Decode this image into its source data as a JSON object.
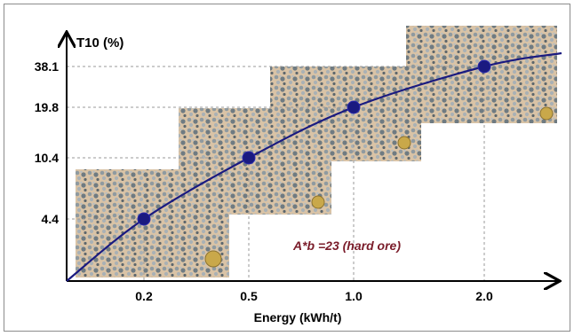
{
  "chart_data": {
    "type": "line",
    "title": "",
    "xlabel": "Energy (kWh/t)",
    "ylabel": "T10 (%)",
    "x_ticks": [
      "0.2",
      "0.5",
      "1.0",
      "2.0"
    ],
    "y_ticks": [
      "4.4",
      "10.4",
      "19.8",
      "38.1"
    ],
    "series": [
      {
        "x": [
          0.2,
          0.5,
          1.0,
          2.0
        ],
        "y": [
          4.4,
          10.4,
          19.8,
          38.1
        ],
        "color": "#1a1a80"
      }
    ],
    "annotation": "A*b =23 (hard ore)",
    "annotation_color": "#7a1c2a",
    "grid": "dashed drop-lines to data points",
    "background_images": [
      "crushed-ore-sample-1",
      "crushed-ore-sample-2",
      "crushed-ore-sample-3",
      "crushed-ore-sample-4"
    ]
  }
}
